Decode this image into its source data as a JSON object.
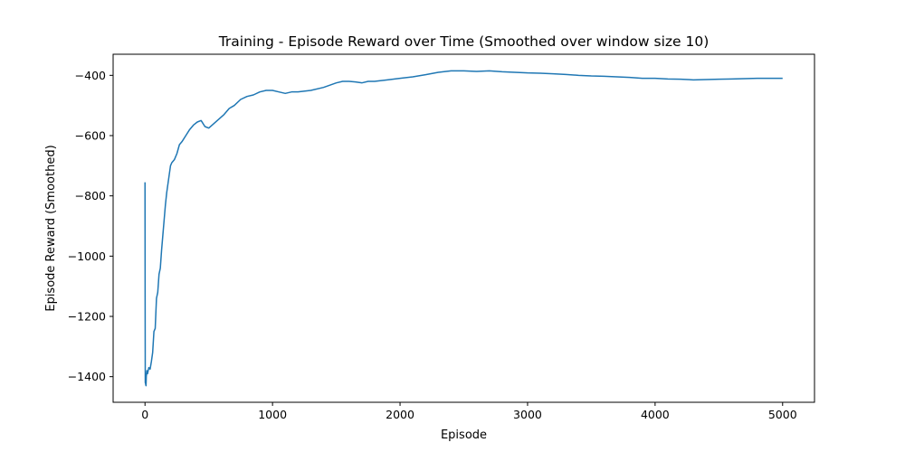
{
  "chart_data": {
    "type": "line",
    "title": "Training - Episode Reward over Time (Smoothed over window size 10)",
    "xlabel": "Episode",
    "ylabel": "Episode Reward (Smoothed)",
    "xlim": [
      -250,
      5250
    ],
    "ylim": [
      -1485,
      -330
    ],
    "xticks": [
      0,
      1000,
      2000,
      3000,
      4000,
      5000
    ],
    "xtick_labels": [
      "0",
      "1000",
      "2000",
      "3000",
      "4000",
      "5000"
    ],
    "yticks": [
      -1400,
      -1200,
      -1000,
      -800,
      -600,
      -400
    ],
    "ytick_labels": [
      "−1400",
      "−1200",
      "−1000",
      "−800",
      "−600",
      "−400"
    ],
    "grid": false,
    "legend": "none",
    "series": [
      {
        "color": "#1f77b4",
        "x": [
          0,
          1,
          2,
          3,
          5,
          8,
          10,
          15,
          20,
          30,
          40,
          50,
          60,
          70,
          80,
          90,
          100,
          110,
          120,
          130,
          140,
          150,
          160,
          170,
          180,
          190,
          200,
          210,
          230,
          250,
          270,
          290,
          320,
          350,
          380,
          410,
          440,
          470,
          500,
          540,
          580,
          620,
          660,
          700,
          750,
          800,
          850,
          900,
          950,
          1000,
          1050,
          1100,
          1150,
          1200,
          1300,
          1400,
          1500,
          1550,
          1600,
          1650,
          1700,
          1750,
          1800,
          1900,
          2000,
          2100,
          2200,
          2300,
          2400,
          2500,
          2600,
          2700,
          2800,
          2900,
          3000,
          3100,
          3200,
          3300,
          3400,
          3500,
          3600,
          3700,
          3800,
          3900,
          4000,
          4100,
          4200,
          4300,
          4400,
          4500,
          4600,
          4700,
          4800,
          4900,
          5000
        ],
        "values": [
          -755,
          -1150,
          -1420,
          -1415,
          -1425,
          -1430,
          -1400,
          -1380,
          -1390,
          -1370,
          -1375,
          -1350,
          -1320,
          -1250,
          -1240,
          -1140,
          -1120,
          -1060,
          -1040,
          -980,
          -930,
          -880,
          -830,
          -790,
          -760,
          -730,
          -700,
          -690,
          -680,
          -660,
          -630,
          -620,
          -600,
          -580,
          -565,
          -555,
          -550,
          -570,
          -575,
          -560,
          -545,
          -530,
          -510,
          -500,
          -480,
          -470,
          -465,
          -455,
          -450,
          -450,
          -455,
          -460,
          -455,
          -455,
          -450,
          -440,
          -425,
          -420,
          -420,
          -422,
          -425,
          -420,
          -420,
          -415,
          -410,
          -405,
          -398,
          -390,
          -385,
          -385,
          -387,
          -385,
          -388,
          -390,
          -392,
          -393,
          -395,
          -397,
          -400,
          -402,
          -403,
          -405,
          -407,
          -410,
          -410,
          -412,
          -413,
          -415,
          -414,
          -413,
          -412,
          -411,
          -410,
          -410,
          -410
        ]
      }
    ]
  }
}
